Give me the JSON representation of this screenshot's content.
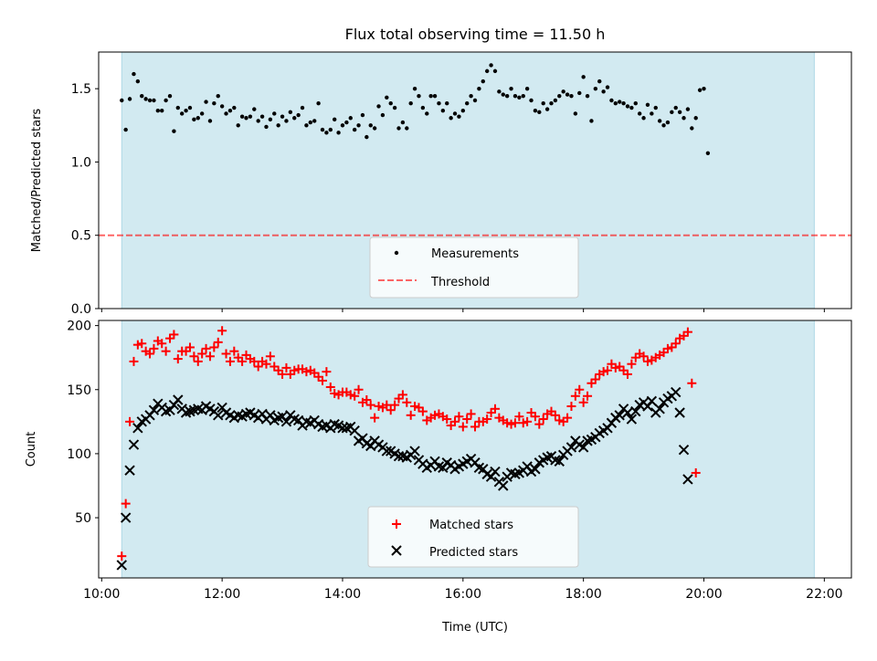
{
  "colors": {
    "observing_window": "#add8e6",
    "measurement": "#000000",
    "threshold": "#ff0000",
    "matched": "#ff0000",
    "predicted": "#000000"
  },
  "chart_data": [
    {
      "type": "scatter",
      "title": "Flux total observing time = 11.50 h",
      "ylabel": "Matched/Predicted stars",
      "xlabel": "",
      "xlim": [
        "09:57",
        "22:27"
      ],
      "ylim": [
        0,
        1.75
      ],
      "yticks": [
        "0.0",
        "0.5",
        "1.0",
        "1.5"
      ],
      "shaded_span": {
        "start": "10:20",
        "end": "21:50"
      },
      "threshold": {
        "name": "Threshold",
        "value": 0.5,
        "style": "dashed"
      },
      "legend": {
        "position": "bottom-center",
        "entries": [
          "Measurements",
          "Threshold"
        ]
      },
      "series": [
        {
          "name": "Measurements",
          "x_start": "10:20",
          "x_step_min": 4,
          "y": [
            1.42,
            1.22,
            1.43,
            1.6,
            1.55,
            1.45,
            1.43,
            1.42,
            1.42,
            1.35,
            1.35,
            1.42,
            1.45,
            1.21,
            1.37,
            1.33,
            1.35,
            1.37,
            1.29,
            1.3,
            1.33,
            1.41,
            1.28,
            1.4,
            1.45,
            1.38,
            1.33,
            1.35,
            1.37,
            1.25,
            1.31,
            1.3,
            1.31,
            1.36,
            1.28,
            1.31,
            1.24,
            1.29,
            1.33,
            1.25,
            1.31,
            1.28,
            1.34,
            1.3,
            1.32,
            1.37,
            1.25,
            1.27,
            1.28,
            1.4,
            1.22,
            1.2,
            1.22,
            1.29,
            1.2,
            1.25,
            1.27,
            1.3,
            1.22,
            1.25,
            1.32,
            1.17,
            1.25,
            1.23,
            1.38,
            1.32,
            1.44,
            1.4,
            1.37,
            1.23,
            1.27,
            1.23,
            1.4,
            1.5,
            1.45,
            1.37,
            1.33,
            1.45,
            1.45,
            1.4,
            1.35,
            1.4,
            1.3,
            1.33,
            1.31,
            1.35,
            1.4,
            1.45,
            1.42,
            1.5,
            1.55,
            1.62,
            1.66,
            1.62,
            1.48,
            1.46,
            1.45,
            1.5,
            1.45,
            1.44,
            1.45,
            1.5,
            1.42,
            1.35,
            1.34,
            1.4,
            1.36,
            1.4,
            1.42,
            1.45,
            1.48,
            1.46,
            1.45,
            1.33,
            1.47,
            1.58,
            1.45,
            1.28,
            1.5,
            1.55,
            1.48,
            1.51,
            1.42,
            1.4,
            1.41,
            1.4,
            1.38,
            1.37,
            1.4,
            1.33,
            1.3,
            1.39,
            1.33,
            1.37,
            1.28,
            1.25,
            1.27,
            1.34,
            1.37,
            1.34,
            1.3,
            1.36,
            1.23,
            1.3,
            1.49,
            1.5,
            1.06
          ]
        }
      ]
    },
    {
      "type": "scatter",
      "title": "",
      "xlabel": "Time (UTC)",
      "ylabel": "Count",
      "xlim": [
        "09:57",
        "22:27"
      ],
      "ylim": [
        3,
        204
      ],
      "xticks": [
        "10:00",
        "12:00",
        "14:00",
        "16:00",
        "18:00",
        "20:00",
        "22:00"
      ],
      "yticks": [
        "50",
        "100",
        "150",
        "200"
      ],
      "shaded_span": {
        "start": "10:20",
        "end": "21:50"
      },
      "legend": {
        "position": "bottom-center",
        "entries": [
          "Matched stars",
          "Predicted stars"
        ]
      },
      "series": [
        {
          "name": "Matched stars",
          "marker": "plus",
          "x_start": "10:20",
          "x_step_min": 4,
          "y": [
            20,
            61,
            125,
            172,
            185,
            186,
            180,
            178,
            182,
            188,
            186,
            180,
            190,
            193,
            174,
            180,
            180,
            183,
            176,
            172,
            178,
            182,
            176,
            183,
            187,
            196,
            178,
            172,
            180,
            175,
            172,
            177,
            174,
            172,
            168,
            172,
            170,
            176,
            168,
            165,
            162,
            167,
            162,
            165,
            166,
            166,
            164,
            165,
            163,
            160,
            157,
            164,
            152,
            147,
            146,
            148,
            148,
            146,
            145,
            150,
            140,
            142,
            138,
            128,
            137,
            136,
            138,
            134,
            138,
            143,
            146,
            140,
            130,
            137,
            136,
            133,
            126,
            128,
            130,
            131,
            129,
            127,
            122,
            125,
            129,
            121,
            127,
            131,
            121,
            125,
            125,
            127,
            132,
            135,
            128,
            126,
            124,
            123,
            124,
            129,
            124,
            125,
            132,
            129,
            123,
            127,
            131,
            133,
            130,
            126,
            125,
            128,
            137,
            145,
            150,
            140,
            145,
            155,
            158,
            162,
            164,
            165,
            170,
            167,
            168,
            165,
            162,
            170,
            175,
            178,
            176,
            172,
            173,
            175,
            177,
            179,
            182,
            183,
            186,
            190,
            192,
            195,
            155,
            85
          ]
        },
        {
          "name": "Predicted stars",
          "marker": "x",
          "x_start": "10:20",
          "x_step_min": 4,
          "y": [
            13,
            50,
            87,
            107,
            120,
            125,
            127,
            130,
            134,
            139,
            136,
            133,
            134,
            138,
            142,
            135,
            132,
            133,
            134,
            135,
            134,
            137,
            135,
            133,
            130,
            136,
            132,
            130,
            128,
            130,
            129,
            131,
            132,
            130,
            128,
            131,
            127,
            130,
            126,
            128,
            129,
            125,
            130,
            127,
            126,
            122,
            125,
            124,
            126,
            123,
            121,
            122,
            120,
            123,
            122,
            120,
            120,
            121,
            118,
            110,
            112,
            108,
            106,
            110,
            107,
            105,
            102,
            102,
            100,
            98,
            98,
            97,
            99,
            102,
            95,
            92,
            89,
            91,
            94,
            90,
            89,
            93,
            91,
            88,
            90,
            92,
            94,
            96,
            93,
            89,
            88,
            84,
            82,
            86,
            78,
            75,
            82,
            85,
            84,
            85,
            87,
            90,
            86,
            88,
            93,
            95,
            97,
            98,
            95,
            94,
            99,
            102,
            105,
            110,
            107,
            105,
            110,
            111,
            113,
            116,
            118,
            120,
            124,
            128,
            130,
            135,
            132,
            127,
            133,
            138,
            140,
            137,
            141,
            132,
            135,
            140,
            143,
            145,
            148,
            132,
            103,
            80
          ]
        }
      ]
    }
  ]
}
